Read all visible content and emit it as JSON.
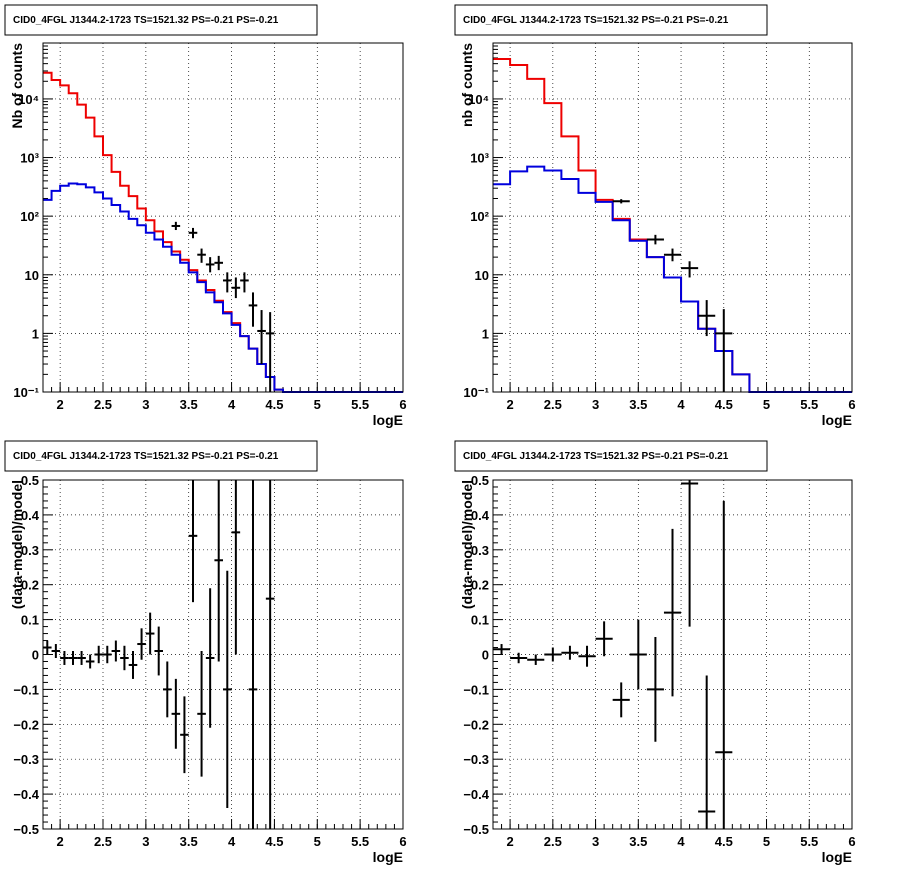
{
  "chart_data": [
    {
      "type": "step-line+errorbar",
      "title": "CID0_4FGL J1344.2-1723 TS=1521.32 PS=-0.21 PS=-0.21",
      "xlabel": "logE",
      "ylabel": "Nb of counts",
      "xlim": [
        1.8,
        6.0
      ],
      "ylim": [
        0.1,
        90000
      ],
      "yscale": "log",
      "grid": true,
      "x_ticks": [
        "2",
        "2.5",
        "3",
        "3.5",
        "4",
        "4.5",
        "5",
        "5.5",
        "6"
      ],
      "y_ticks": [
        "10⁻¹",
        "1",
        "10",
        "10²",
        "10³",
        "10⁴"
      ],
      "bin_edges": [
        1.8,
        1.9,
        2.0,
        2.1,
        2.2,
        2.3,
        2.4,
        2.5,
        2.6,
        2.7,
        2.8,
        2.9,
        3.0,
        3.1,
        3.2,
        3.3,
        3.4,
        3.5,
        3.6,
        3.7,
        3.8,
        3.9,
        4.0,
        4.1,
        4.2,
        4.3,
        4.4,
        4.5,
        4.6,
        4.7,
        4.8,
        4.9,
        5.0,
        5.1,
        5.2,
        5.3,
        5.4,
        5.5,
        5.6,
        5.7,
        5.8,
        5.9,
        6.0
      ],
      "series": [
        {
          "color": "#ee0000",
          "values": [
            28000,
            21000,
            17000,
            12500,
            8000,
            4800,
            2300,
            1100,
            570,
            330,
            220,
            135,
            85,
            55,
            36,
            25,
            18,
            12,
            8,
            5.5,
            3.6,
            2.3,
            1.5,
            0.9,
            0.55,
            0.3,
            0.18,
            0.11,
            0.1,
            0.1,
            0.1,
            0.1,
            0.1,
            0.1,
            0.1,
            0.1,
            0.1,
            0.1,
            0.1,
            0.1,
            0.1,
            0.1
          ]
        },
        {
          "color": "#0000dd",
          "values": [
            190,
            270,
            330,
            360,
            350,
            310,
            255,
            200,
            155,
            120,
            90,
            70,
            52,
            40,
            30,
            22,
            16,
            11,
            7.5,
            5,
            3.4,
            2.2,
            1.4,
            0.9,
            0.55,
            0.3,
            0.18,
            0.11,
            0.1,
            0.1,
            0.1,
            0.1,
            0.1,
            0.1,
            0.1,
            0.1,
            0.1,
            0.1,
            0.1,
            0.1,
            0.1,
            0.1
          ]
        }
      ],
      "data_points": [
        {
          "x": 3.35,
          "y": 68,
          "ylo": 58,
          "yhi": 80
        },
        {
          "x": 3.55,
          "y": 52,
          "ylo": 42,
          "yhi": 63
        },
        {
          "x": 3.65,
          "y": 22,
          "ylo": 16,
          "yhi": 28
        },
        {
          "x": 3.75,
          "y": 15,
          "ylo": 11,
          "yhi": 20
        },
        {
          "x": 3.85,
          "y": 16,
          "ylo": 12,
          "yhi": 21
        },
        {
          "x": 3.95,
          "y": 8,
          "ylo": 5,
          "yhi": 11
        },
        {
          "x": 4.05,
          "y": 6,
          "ylo": 4,
          "yhi": 9
        },
        {
          "x": 4.15,
          "y": 8,
          "ylo": 5,
          "yhi": 11
        },
        {
          "x": 4.25,
          "y": 3,
          "ylo": 1.3,
          "yhi": 5
        },
        {
          "x": 4.35,
          "y": 1.1,
          "ylo": 0.3,
          "yhi": 2.5
        },
        {
          "x": 4.45,
          "y": 1,
          "ylo": 0.1,
          "yhi": 2.3
        }
      ]
    },
    {
      "type": "step-line+errorbar",
      "title": "CID0_4FGL J1344.2-1723 TS=1521.32 PS=-0.21 PS=-0.21",
      "xlabel": "logE",
      "ylabel": "nb of counts",
      "xlim": [
        1.8,
        6.0
      ],
      "ylim": [
        0.1,
        90000
      ],
      "yscale": "log",
      "grid": true,
      "x_ticks": [
        "2",
        "2.5",
        "3",
        "3.5",
        "4",
        "4.5",
        "5",
        "5.5",
        "6"
      ],
      "y_ticks": [
        "10⁻¹",
        "1",
        "10",
        "10²",
        "10³",
        "10⁴"
      ],
      "bin_edges": [
        1.8,
        2.0,
        2.2,
        2.4,
        2.6,
        2.8,
        3.0,
        3.2,
        3.4,
        3.6,
        3.8,
        4.0,
        4.2,
        4.4,
        4.6,
        4.8,
        5.0,
        5.2,
        5.4,
        5.6,
        5.8,
        6.0
      ],
      "series": [
        {
          "color": "#ee0000",
          "values": [
            48000,
            38000,
            22000,
            8500,
            2300,
            600,
            190,
            90,
            40,
            20,
            9,
            3.5,
            1.2,
            0.5,
            0.2,
            0.1,
            0.1,
            0.1,
            0.1,
            0.1,
            0.1
          ]
        },
        {
          "color": "#0000dd",
          "values": [
            350,
            580,
            700,
            600,
            430,
            250,
            175,
            85,
            38,
            20,
            9,
            3.5,
            1.2,
            0.5,
            0.2,
            0.1,
            0.1,
            0.1,
            0.1,
            0.1,
            0.1
          ]
        }
      ],
      "data_points": [
        {
          "x": 3.3,
          "y": 180,
          "ylo": 165,
          "yhi": 195
        },
        {
          "x": 3.7,
          "y": 40,
          "ylo": 33,
          "yhi": 48
        },
        {
          "x": 3.9,
          "y": 22,
          "ylo": 17,
          "yhi": 28
        },
        {
          "x": 4.1,
          "y": 13,
          "ylo": 9,
          "yhi": 17
        },
        {
          "x": 4.3,
          "y": 2,
          "ylo": 0.9,
          "yhi": 3.7
        },
        {
          "x": 4.5,
          "y": 1,
          "ylo": 0.1,
          "yhi": 2.6
        }
      ]
    },
    {
      "type": "errorbar",
      "title": "CID0_4FGL J1344.2-1723 TS=1521.32 PS=-0.21 PS=-0.21",
      "xlabel": "logE",
      "ylabel": "(data-model)/model",
      "xlim": [
        1.8,
        6.0
      ],
      "ylim": [
        -0.5,
        0.5
      ],
      "yscale": "linear",
      "grid": true,
      "x_ticks": [
        "2",
        "2.5",
        "3",
        "3.5",
        "4",
        "4.5",
        "5",
        "5.5",
        "6"
      ],
      "y_ticks": [
        "−0.5",
        "−0.4",
        "−0.3",
        "−0.2",
        "−0.1",
        "0",
        "0.1",
        "0.2",
        "0.3",
        "0.4",
        "0.5"
      ],
      "xhalfwidth": 0.05,
      "data_points": [
        {
          "x": 1.85,
          "y": 0.02,
          "yerr": 0.02
        },
        {
          "x": 1.95,
          "y": 0.01,
          "yerr": 0.02
        },
        {
          "x": 2.05,
          "y": -0.01,
          "yerr": 0.02
        },
        {
          "x": 2.15,
          "y": -0.01,
          "yerr": 0.02
        },
        {
          "x": 2.25,
          "y": -0.01,
          "yerr": 0.02
        },
        {
          "x": 2.35,
          "y": -0.02,
          "yerr": 0.02
        },
        {
          "x": 2.45,
          "y": 0.0,
          "yerr": 0.025
        },
        {
          "x": 2.55,
          "y": 0.0,
          "yerr": 0.025
        },
        {
          "x": 2.65,
          "y": 0.01,
          "yerr": 0.03
        },
        {
          "x": 2.75,
          "y": -0.01,
          "yerr": 0.035
        },
        {
          "x": 2.85,
          "y": -0.03,
          "yerr": 0.04
        },
        {
          "x": 2.95,
          "y": 0.03,
          "yerr": 0.045
        },
        {
          "x": 3.05,
          "y": 0.06,
          "yerr": 0.06
        },
        {
          "x": 3.15,
          "y": 0.01,
          "yerr": 0.07
        },
        {
          "x": 3.25,
          "y": -0.1,
          "yerr": 0.08
        },
        {
          "x": 3.35,
          "y": -0.17,
          "yerr": 0.1
        },
        {
          "x": 3.45,
          "y": -0.23,
          "yerr": 0.11
        },
        {
          "x": 3.55,
          "y": 0.34,
          "yerr": 0.19
        },
        {
          "x": 3.65,
          "y": -0.17,
          "yerr": 0.18
        },
        {
          "x": 3.75,
          "y": -0.01,
          "yerr": 0.2
        },
        {
          "x": 3.85,
          "y": 0.27,
          "yerr": 0.29
        },
        {
          "x": 3.95,
          "y": -0.1,
          "yerr": 0.34
        },
        {
          "x": 4.05,
          "y": 0.35,
          "yerr": 0.35
        },
        {
          "x": 4.25,
          "y": -0.1,
          "yerr": 0.6
        },
        {
          "x": 4.45,
          "y": 0.16,
          "yerr": 0.9
        }
      ]
    },
    {
      "type": "errorbar",
      "title": "CID0_4FGL J1344.2-1723 TS=1521.32 PS=-0.21 PS=-0.21",
      "xlabel": "logE",
      "ylabel": "(data-model)/model",
      "xlim": [
        1.8,
        6.0
      ],
      "ylim": [
        -0.5,
        0.5
      ],
      "yscale": "linear",
      "grid": true,
      "x_ticks": [
        "2",
        "2.5",
        "3",
        "3.5",
        "4",
        "4.5",
        "5",
        "5.5",
        "6"
      ],
      "y_ticks": [
        "−0.5",
        "−0.4",
        "−0.3",
        "−0.2",
        "−0.1",
        "0",
        "0.1",
        "0.2",
        "0.3",
        "0.4",
        "0.5"
      ],
      "xhalfwidth": 0.1,
      "data_points": [
        {
          "x": 1.9,
          "y": 0.015,
          "yerr": 0.015
        },
        {
          "x": 2.1,
          "y": -0.01,
          "yerr": 0.015
        },
        {
          "x": 2.3,
          "y": -0.015,
          "yerr": 0.015
        },
        {
          "x": 2.5,
          "y": 0.0,
          "yerr": 0.02
        },
        {
          "x": 2.7,
          "y": 0.005,
          "yerr": 0.02
        },
        {
          "x": 2.9,
          "y": -0.005,
          "yerr": 0.03
        },
        {
          "x": 3.1,
          "y": 0.045,
          "yerr": 0.05
        },
        {
          "x": 3.3,
          "y": -0.13,
          "yerr": 0.05
        },
        {
          "x": 3.5,
          "y": 0.0,
          "yerr": 0.1
        },
        {
          "x": 3.7,
          "y": -0.1,
          "yerr": 0.15
        },
        {
          "x": 3.9,
          "y": 0.12,
          "yerr": 0.24
        },
        {
          "x": 4.1,
          "y": 0.49,
          "yerr": 0.41
        },
        {
          "x": 4.3,
          "y": -0.45,
          "yerr": 0.39
        },
        {
          "x": 4.5,
          "y": -0.28,
          "yerr": 0.72
        }
      ]
    }
  ]
}
